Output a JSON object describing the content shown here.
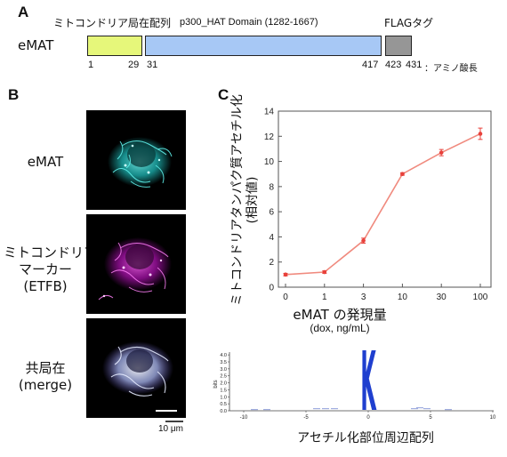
{
  "panels": {
    "a": "A",
    "b": "B",
    "c": "C"
  },
  "panel_a": {
    "construct_name": "eMAT",
    "segments": [
      {
        "label": "ミトコンドリア局在配列",
        "color": "#e6f77a"
      },
      {
        "label": "p300_HAT Domain (1282-1667)",
        "color": "#a7c8f5"
      },
      {
        "label": "FLAGタグ",
        "color": "#969696"
      }
    ],
    "positions": [
      "1",
      "29",
      "31",
      "417",
      "423",
      "431"
    ],
    "unit_label": "：アミノ酸長"
  },
  "panel_b": {
    "row_labels": [
      {
        "line1": "eMAT",
        "line2": "",
        "line3": ""
      },
      {
        "line1": "ミトコンドリア",
        "line2": "マーカー",
        "line3": "(ETFB)"
      },
      {
        "line1": "共局在",
        "line2": "(merge)",
        "line3": ""
      }
    ],
    "scale_bar": "10 μm"
  },
  "chart_data": [
    {
      "type": "line",
      "categories": [
        "0",
        "1",
        "3",
        "10",
        "30",
        "100"
      ],
      "series": [
        {
          "values": [
            1.0,
            1.2,
            3.7,
            9.0,
            10.7,
            12.2
          ],
          "errors": [
            0.1,
            0.1,
            0.2,
            0.1,
            0.25,
            0.45
          ]
        }
      ],
      "title": "",
      "xlabel": "eMAT の発現量",
      "xlabel_sub": "(dox, ng/mL)",
      "ylabel": "ミトコンドリアタンパク質アセチル化",
      "ylabel_sub": "(相対値)",
      "ylim": [
        0,
        14
      ],
      "yticks": [
        "0",
        "2",
        "4",
        "6",
        "8",
        "10",
        "12",
        "14"
      ],
      "line_color": "#f08a7e",
      "marker_color": "#e8413b"
    },
    {
      "type": "other",
      "title": "",
      "xlabel": "アセチル化部位周辺配列",
      "ylabel": "bits",
      "xticks": [
        "-10",
        "-5",
        "0",
        "5",
        "10"
      ],
      "yticks": [
        "0.0",
        "0.5",
        "1.0",
        "1.5",
        "2.0",
        "2.5",
        "3.0",
        "3.5",
        "4.0"
      ],
      "ylim": [
        0,
        4.2
      ],
      "center_letter": "K",
      "letter_color": "#1f3fcf"
    }
  ]
}
